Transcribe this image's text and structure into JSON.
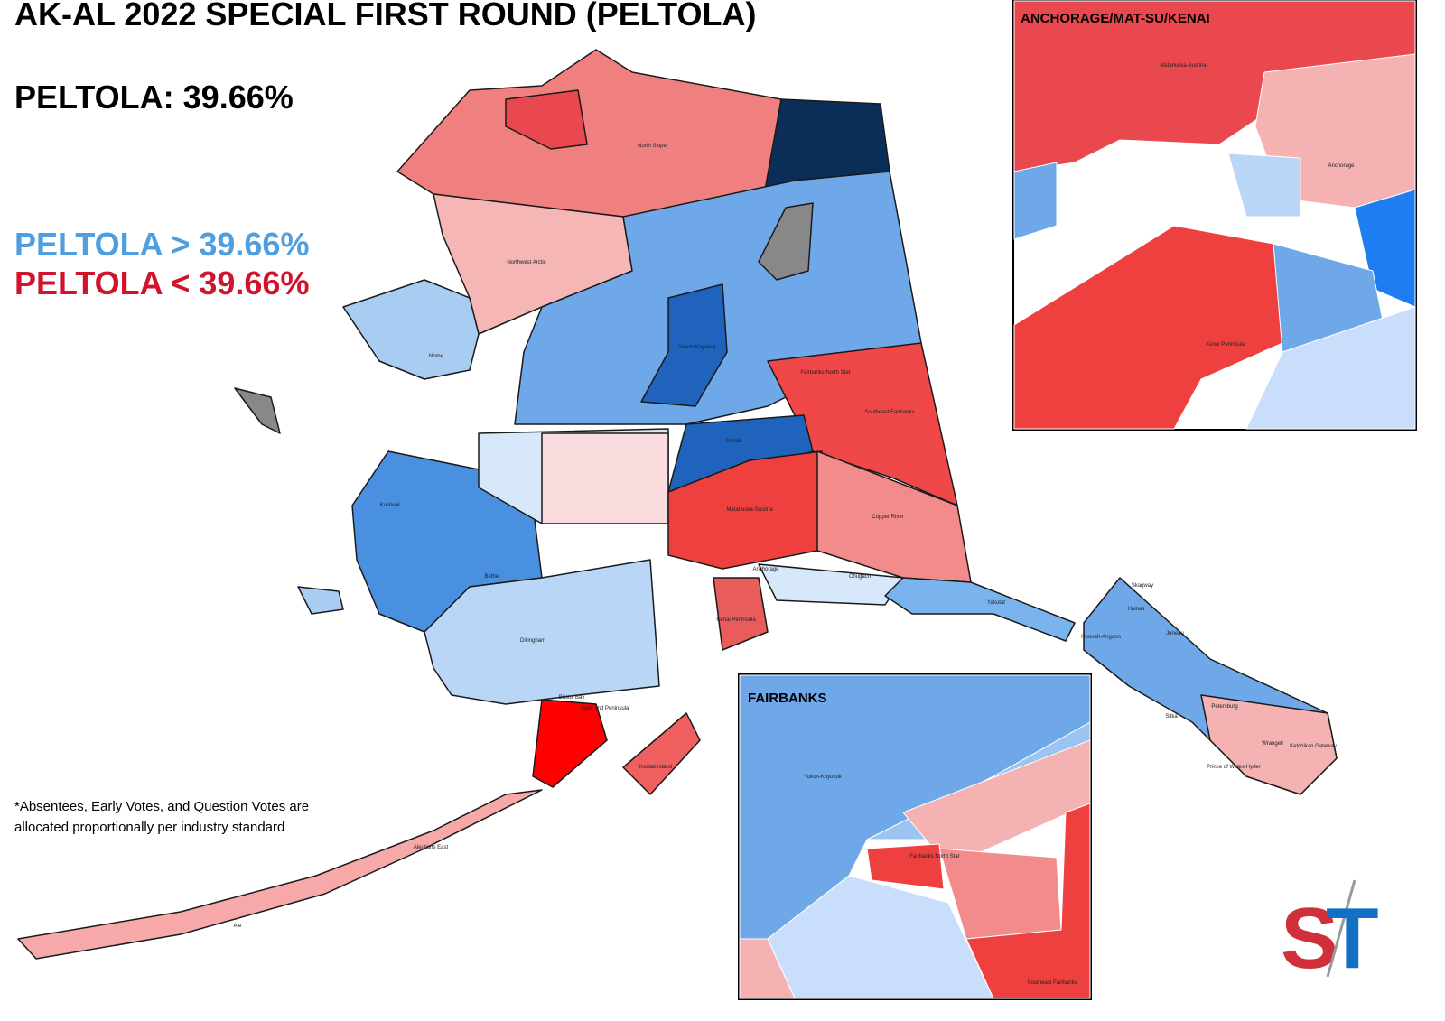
{
  "title": "AK-AL 2022 SPECIAL FIRST ROUND (PELTOLA)",
  "statewide": "PELTOLA: 39.66%",
  "legend": {
    "above": "PELTOLA > 39.66%",
    "below": "PELTOLA < 39.66%"
  },
  "footnote": [
    "*Absentees, Early Votes, and Question Votes are",
    "allocated proportionally per industry standard"
  ],
  "map": {
    "labels": [
      "North Slope",
      "Northwest Arctic",
      "Nome",
      "Yukon-Koyukuk",
      "Fairbanks North Star",
      "Southeast Fairbanks",
      "Denali",
      "Kusilvak",
      "Bethel",
      "Matanuska-Susitna",
      "Copper River",
      "Anchorage",
      "Chugach",
      "Yakutat",
      "Kenai Peninsula",
      "Dillingham",
      "Bristol Bay",
      "Lake and Peninsula",
      "Kodiak Island",
      "Aleutians East",
      "Ale",
      "Skagway",
      "Haines",
      "Juneau",
      "Hoonah-Angoon",
      "Sitka",
      "Petersburg",
      "Wrangell",
      "Ketchikan Gateway",
      "Prince of Wales-Hyder"
    ]
  },
  "insets": [
    {
      "title": "ANCHORAGE/MAT-SU/KENAI",
      "labels": [
        "Matanuska-Susitna",
        "Anchorage",
        "Kenai Peninsula"
      ]
    },
    {
      "title": "FAIRBANKS",
      "labels": [
        "Yukon-Koyukuk",
        "Fairbanks North Star",
        "Southeast Fairbanks"
      ]
    }
  ],
  "logo": [
    "S",
    "T"
  ]
}
